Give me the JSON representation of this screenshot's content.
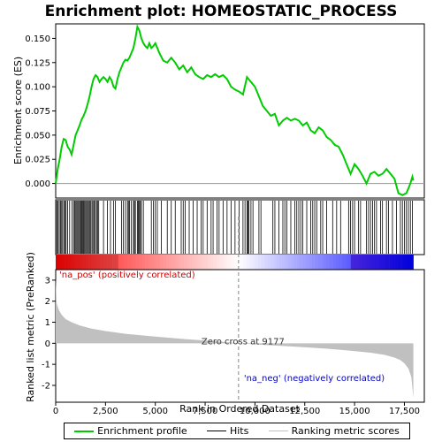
{
  "chart_data": {
    "type": "line",
    "title": "Enrichment plot: HOMEOSTATIC_PROCESS",
    "top_panel": {
      "ylabel": "Enrichment score (ES)",
      "ylim": [
        -0.015,
        0.165
      ],
      "yticks": [
        0.0,
        0.025,
        0.05,
        0.075,
        0.1,
        0.125,
        0.15
      ],
      "ytick_labels": [
        "0.000",
        "0.025",
        "0.050",
        "0.075",
        "0.100",
        "0.125",
        "0.150"
      ],
      "series": [
        {
          "name": "Enrichment profile",
          "color": "#00cc00",
          "x": [
            0,
            100,
            200,
            300,
            400,
            500,
            600,
            700,
            800,
            900,
            1000,
            1100,
            1200,
            1300,
            1400,
            1500,
            1600,
            1700,
            1800,
            1900,
            2000,
            2100,
            2200,
            2300,
            2400,
            2500,
            2600,
            2700,
            2800,
            2900,
            3000,
            3100,
            3200,
            3300,
            3400,
            3500,
            3600,
            3700,
            3800,
            3900,
            4000,
            4100,
            4200,
            4300,
            4400,
            4500,
            4600,
            4700,
            4800,
            4900,
            5000,
            5100,
            5200,
            5400,
            5600,
            5800,
            6000,
            6200,
            6400,
            6600,
            6800,
            7000,
            7200,
            7400,
            7600,
            7800,
            8000,
            8200,
            8400,
            8600,
            8800,
            9000,
            9200,
            9400,
            9600,
            9800,
            10000,
            10200,
            10400,
            10600,
            10800,
            11000,
            11200,
            11400,
            11600,
            11800,
            12000,
            12200,
            12400,
            12600,
            12800,
            13000,
            13200,
            13400,
            13600,
            13800,
            14000,
            14200,
            14400,
            14600,
            14800,
            15000,
            15200,
            15400,
            15600,
            15800,
            16000,
            16200,
            16400,
            16600,
            16800,
            17000,
            17200,
            17400,
            17600,
            17700,
            17800,
            17900,
            17950
          ],
          "y": [
            0.0,
            0.015,
            0.025,
            0.038,
            0.046,
            0.045,
            0.038,
            0.035,
            0.03,
            0.04,
            0.05,
            0.055,
            0.06,
            0.066,
            0.07,
            0.075,
            0.082,
            0.09,
            0.1,
            0.108,
            0.112,
            0.11,
            0.105,
            0.108,
            0.11,
            0.108,
            0.105,
            0.11,
            0.107,
            0.1,
            0.098,
            0.108,
            0.115,
            0.12,
            0.125,
            0.128,
            0.127,
            0.13,
            0.135,
            0.14,
            0.15,
            0.162,
            0.158,
            0.15,
            0.145,
            0.142,
            0.14,
            0.145,
            0.14,
            0.142,
            0.145,
            0.14,
            0.135,
            0.127,
            0.125,
            0.13,
            0.125,
            0.118,
            0.122,
            0.115,
            0.12,
            0.113,
            0.11,
            0.108,
            0.112,
            0.11,
            0.113,
            0.11,
            0.112,
            0.108,
            0.1,
            0.097,
            0.095,
            0.092,
            0.11,
            0.105,
            0.1,
            0.09,
            0.08,
            0.075,
            0.07,
            0.072,
            0.06,
            0.065,
            0.068,
            0.065,
            0.067,
            0.065,
            0.06,
            0.063,
            0.055,
            0.052,
            0.058,
            0.055,
            0.048,
            0.045,
            0.04,
            0.038,
            0.03,
            0.02,
            0.01,
            0.02,
            0.015,
            0.008,
            0.0,
            0.01,
            0.012,
            0.008,
            0.01,
            0.015,
            0.01,
            0.005,
            -0.01,
            -0.012,
            -0.01,
            -0.005,
            0.0,
            0.007,
            0.003
          ]
        }
      ]
    },
    "hits_panel": {
      "series_name": "Hits",
      "hit_positions": [
        10,
        60,
        120,
        180,
        240,
        300,
        350,
        420,
        480,
        520,
        600,
        700,
        820,
        900,
        960,
        1010,
        1060,
        1110,
        1160,
        1210,
        1260,
        1310,
        1360,
        1400,
        1450,
        1500,
        1550,
        1600,
        1650,
        1700,
        1760,
        1820,
        1870,
        1930,
        1990,
        2050,
        2100,
        2160,
        2400,
        2600,
        2750,
        2900,
        3000,
        3300,
        3400,
        3500,
        3600,
        3650,
        3700,
        3800,
        3900,
        3950,
        4000,
        4100,
        4150,
        4200,
        4250,
        4300,
        4400,
        4800,
        4900,
        5000,
        5100,
        5300,
        5600,
        5800,
        6000,
        6300,
        6400,
        6500,
        6700,
        6900,
        7100,
        7300,
        7400,
        7600,
        7800,
        7900,
        8100,
        8200,
        8400,
        8600,
        8800,
        9000,
        9200,
        9400,
        9500,
        9600,
        9650,
        9700,
        9800,
        9900,
        10200,
        10300,
        10900,
        11000,
        11200,
        11400,
        11500,
        11600,
        11800,
        12000,
        12100,
        12200,
        12300,
        12400,
        12600,
        12800,
        12900,
        13000,
        13100,
        13300,
        13400,
        13600,
        13900,
        14100,
        14300,
        14700,
        14800,
        14900,
        15000,
        15200,
        15300,
        15600,
        15700,
        15800,
        15900,
        16000,
        16100,
        16300,
        16400,
        16600,
        16700,
        16900,
        17100,
        17300,
        17400,
        17500,
        17600,
        17700,
        17800,
        17900
      ]
    },
    "bottom_panel": {
      "series_name": "Ranking metric scores",
      "ylabel": "Ranked list metric (PreRanked)",
      "xlabel": "Rank in Ordered Dataset",
      "xlim": [
        0,
        18500
      ],
      "ylim": [
        -2.8,
        3.5
      ],
      "yticks": [
        -2,
        -1,
        0,
        1,
        2,
        3
      ],
      "ytick_labels": [
        "-2",
        "-1",
        "0",
        "1",
        "2",
        "3"
      ],
      "xticks": [
        0,
        2500,
        5000,
        7500,
        10000,
        12500,
        15000,
        17500
      ],
      "xtick_labels": [
        "0",
        "2,500",
        "5,000",
        "7,500",
        "10,000",
        "12,500",
        "15,000",
        "17,500"
      ],
      "metric_x": [
        0,
        50,
        150,
        300,
        500,
        800,
        1200,
        1800,
        2500,
        3500,
        5000,
        6500,
        8000,
        9177,
        10500,
        12000,
        13500,
        14800,
        15800,
        16500,
        17000,
        17300,
        17500,
        17700,
        17850,
        17950
      ],
      "metric_y": [
        3.1,
        1.9,
        1.6,
        1.35,
        1.15,
        1.0,
        0.85,
        0.7,
        0.58,
        0.45,
        0.32,
        0.2,
        0.1,
        0.0,
        -0.08,
        -0.16,
        -0.25,
        -0.35,
        -0.45,
        -0.55,
        -0.68,
        -0.8,
        -0.95,
        -1.2,
        -1.6,
        -2.6
      ],
      "zero_cross_label": "Zero cross at 9177",
      "zero_cross": 9177,
      "pos_label": "'na_pos' (positively correlated)",
      "neg_label": "'na_neg' (negatively correlated)",
      "pos_color": "#cc0000",
      "neg_color": "#0000cc",
      "n_genes": 17950
    },
    "legend": {
      "placement": "bottom",
      "items": [
        {
          "label": "Enrichment profile",
          "color": "#00cc00"
        },
        {
          "label": "Hits",
          "color": "#000000"
        },
        {
          "label": "Ranking metric scores",
          "color": "#c0c0c0"
        }
      ]
    }
  }
}
